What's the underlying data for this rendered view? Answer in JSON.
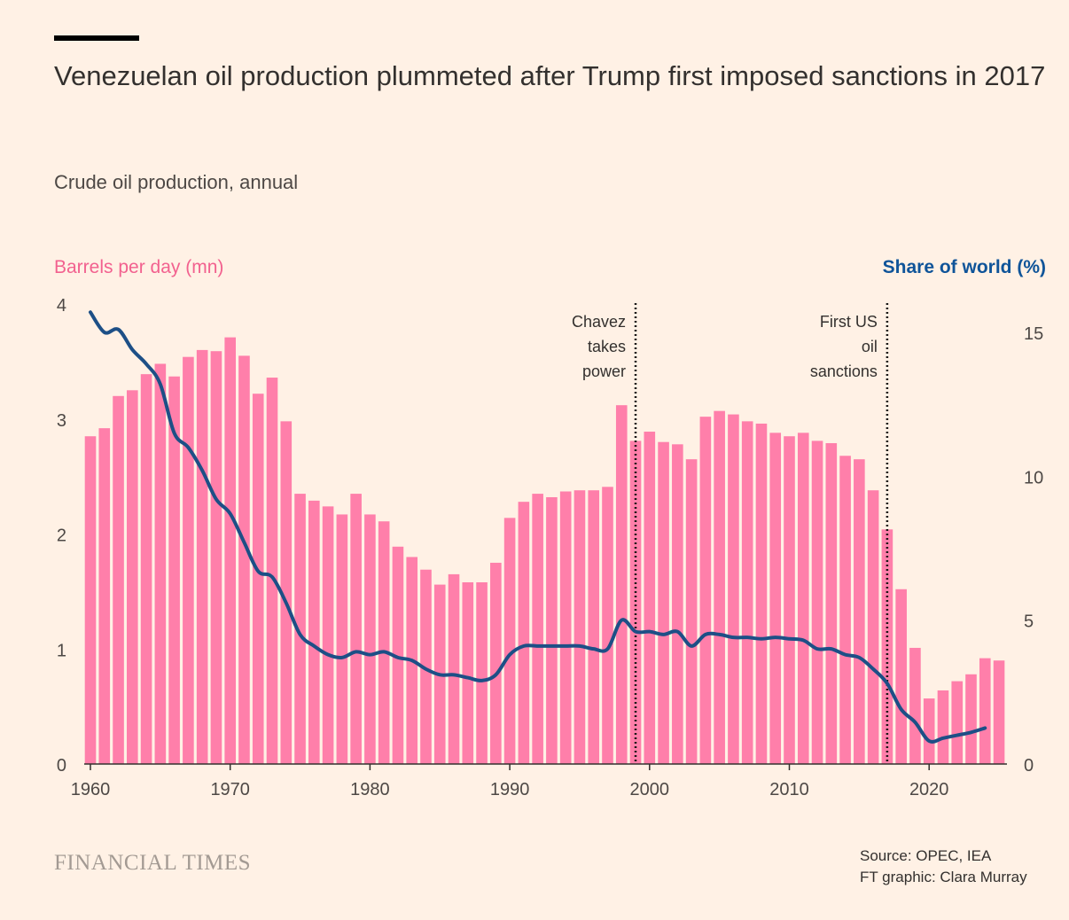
{
  "title": "Venezuelan oil production plummeted after Trump first imposed sanctions in 2017",
  "subtitle": "Crude oil production, annual",
  "branding": "FINANCIAL TIMES",
  "source_line1": "Source: OPEC, IEA",
  "source_line2": "FT graphic: Clara Murray",
  "colors": {
    "bars": "#ff7faa",
    "line": "#1d4f86",
    "background": "#fff1e5",
    "left_label": "#f2618f",
    "right_label": "#0f5499"
  },
  "chart_data": {
    "type": "bar",
    "title": "Venezuelan oil production plummeted after Trump first imposed sanctions in 2017",
    "ylabel": "Barrels per day (mn)",
    "y2label": "Share of world (%)",
    "ylim": [
      0,
      4
    ],
    "y2lim": [
      0,
      16
    ],
    "yticks": [
      "0",
      "1",
      "2",
      "3",
      "4"
    ],
    "y2ticks": [
      "0",
      "5",
      "10",
      "15"
    ],
    "xticks": [
      "1960",
      "1970",
      "1980",
      "1990",
      "2000",
      "2010",
      "2020"
    ],
    "x": [
      1960,
      1961,
      1962,
      1963,
      1964,
      1965,
      1966,
      1967,
      1968,
      1969,
      1970,
      1971,
      1972,
      1973,
      1974,
      1975,
      1976,
      1977,
      1978,
      1979,
      1980,
      1981,
      1982,
      1983,
      1984,
      1985,
      1986,
      1987,
      1988,
      1989,
      1990,
      1991,
      1992,
      1993,
      1994,
      1995,
      1996,
      1997,
      1998,
      1999,
      2000,
      2001,
      2002,
      2003,
      2004,
      2005,
      2006,
      2007,
      2008,
      2009,
      2010,
      2011,
      2012,
      2013,
      2014,
      2015,
      2016,
      2017,
      2018,
      2019,
      2020,
      2021,
      2022,
      2023,
      2024,
      2025
    ],
    "series": [
      {
        "name": "Barrels per day (mn)",
        "type": "bar",
        "axis": "left",
        "values": [
          2.85,
          2.92,
          3.2,
          3.25,
          3.39,
          3.48,
          3.37,
          3.54,
          3.6,
          3.59,
          3.71,
          3.55,
          3.22,
          3.36,
          2.98,
          2.35,
          2.29,
          2.24,
          2.17,
          2.35,
          2.17,
          2.11,
          1.89,
          1.8,
          1.69,
          1.56,
          1.65,
          1.58,
          1.58,
          1.75,
          2.14,
          2.28,
          2.35,
          2.32,
          2.37,
          2.38,
          2.38,
          2.41,
          3.12,
          2.81,
          2.89,
          2.8,
          2.78,
          2.65,
          3.02,
          3.07,
          3.04,
          2.98,
          2.96,
          2.88,
          2.85,
          2.88,
          2.81,
          2.79,
          2.68,
          2.65,
          2.38,
          2.04,
          1.52,
          1.01,
          0.57,
          0.64,
          0.72,
          0.78,
          0.92,
          0.9
        ]
      },
      {
        "name": "Share of world (%)",
        "type": "line",
        "axis": "right",
        "values": [
          15.7,
          15.0,
          15.1,
          14.4,
          13.9,
          13.2,
          11.5,
          11.0,
          10.2,
          9.2,
          8.7,
          7.7,
          6.7,
          6.5,
          5.6,
          4.5,
          4.1,
          3.8,
          3.7,
          3.9,
          3.8,
          3.9,
          3.7,
          3.6,
          3.3,
          3.1,
          3.1,
          3.0,
          2.9,
          3.1,
          3.8,
          4.1,
          4.1,
          4.1,
          4.1,
          4.1,
          4.0,
          4.0,
          5.0,
          4.6,
          4.6,
          4.5,
          4.6,
          4.1,
          4.5,
          4.5,
          4.4,
          4.4,
          4.35,
          4.4,
          4.35,
          4.3,
          4.0,
          4.0,
          3.8,
          3.7,
          3.3,
          2.8,
          1.9,
          1.45,
          0.8,
          0.9,
          1.0,
          1.1,
          1.25,
          null
        ]
      }
    ],
    "annotations": [
      {
        "year": 1999,
        "text": [
          "Chavez",
          "takes",
          "power"
        ]
      },
      {
        "year": 2017,
        "text": [
          "First US",
          "oil",
          "sanctions"
        ]
      }
    ]
  }
}
